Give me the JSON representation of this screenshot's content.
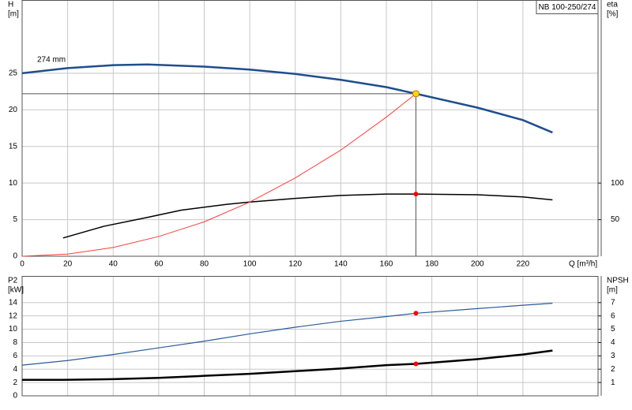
{
  "chart_data": [
    {
      "type": "line",
      "title": "NB 100-250/274",
      "annotation": "274 mm",
      "ylabel": "H",
      "yunit": "[m]",
      "y2label": "eta",
      "y2unit": "[%]",
      "xlabel": "Q [m³/h]",
      "xlim": [
        0,
        253
      ],
      "xticks": [
        0,
        20,
        40,
        60,
        80,
        100,
        120,
        140,
        160,
        180,
        200,
        220
      ],
      "ylim": [
        0,
        35
      ],
      "yticks": [
        0,
        5,
        10,
        15,
        20,
        25
      ],
      "y2lim": [
        0,
        350
      ],
      "y2ticks": [
        50,
        100
      ],
      "grid": true,
      "series": [
        {
          "name": "274 mm",
          "color": "#1f4e8c",
          "width": 2.5,
          "axis": "y",
          "x": [
            0,
            20,
            40,
            55,
            80,
            100,
            120,
            140,
            160,
            173,
            200,
            220,
            233
          ],
          "values": [
            25.0,
            25.7,
            26.1,
            26.2,
            25.9,
            25.5,
            24.9,
            24.1,
            23.1,
            22.2,
            20.3,
            18.6,
            16.9
          ]
        },
        {
          "color": "#000000",
          "width": 1.5,
          "axis": "y2",
          "x": [
            18,
            36,
            55,
            70,
            90,
            100,
            120,
            140,
            160,
            173,
            200,
            220,
            233
          ],
          "values": [
            25,
            41,
            53,
            63,
            71,
            74,
            79,
            83,
            85,
            85,
            84,
            81,
            77
          ]
        },
        {
          "color": "#ff3b3b",
          "width": 1,
          "axis": "y",
          "x": [
            0,
            20,
            40,
            60,
            80,
            100,
            120,
            140,
            160,
            173
          ],
          "values": [
            0,
            0.3,
            1.2,
            2.7,
            4.7,
            7.4,
            10.7,
            14.5,
            19.0,
            22.2
          ]
        }
      ],
      "points": [
        {
          "x": 173,
          "y": 22.2,
          "axis": "y",
          "color": "#ffd700",
          "guide": true
        },
        {
          "x": 173,
          "y": 85,
          "axis": "y2",
          "color": "#ff0000"
        }
      ]
    },
    {
      "type": "line",
      "ylabel": "P2",
      "yunit": "[kW]",
      "y2label": "NPSH",
      "y2unit": "[m]",
      "xlim": [
        0,
        253
      ],
      "ylim": [
        0,
        18
      ],
      "yticks": [
        0,
        2,
        4,
        6,
        8,
        10,
        12,
        14
      ],
      "y2lim": [
        0,
        9
      ],
      "y2ticks": [
        1,
        2,
        3,
        4,
        5,
        6,
        7
      ],
      "grid": true,
      "series": [
        {
          "color": "#2a5a9a",
          "width": 1.2,
          "axis": "y",
          "x": [
            0,
            20,
            40,
            60,
            80,
            100,
            120,
            140,
            160,
            173,
            200,
            220,
            233
          ],
          "values": [
            4.6,
            5.3,
            6.2,
            7.2,
            8.2,
            9.3,
            10.3,
            11.2,
            11.9,
            12.4,
            13.1,
            13.6,
            13.9
          ]
        },
        {
          "color": "#000000",
          "width": 2.5,
          "axis": "y2",
          "x": [
            0,
            18,
            40,
            60,
            80,
            100,
            120,
            140,
            160,
            173,
            200,
            220,
            233
          ],
          "values": [
            1.2,
            1.2,
            1.25,
            1.35,
            1.5,
            1.65,
            1.85,
            2.05,
            2.3,
            2.4,
            2.75,
            3.1,
            3.4
          ]
        }
      ],
      "points": [
        {
          "x": 173,
          "y": 12.4,
          "axis": "y",
          "color": "#ff0000"
        },
        {
          "x": 173,
          "y": 2.4,
          "axis": "y2",
          "color": "#ff0000"
        }
      ]
    }
  ]
}
